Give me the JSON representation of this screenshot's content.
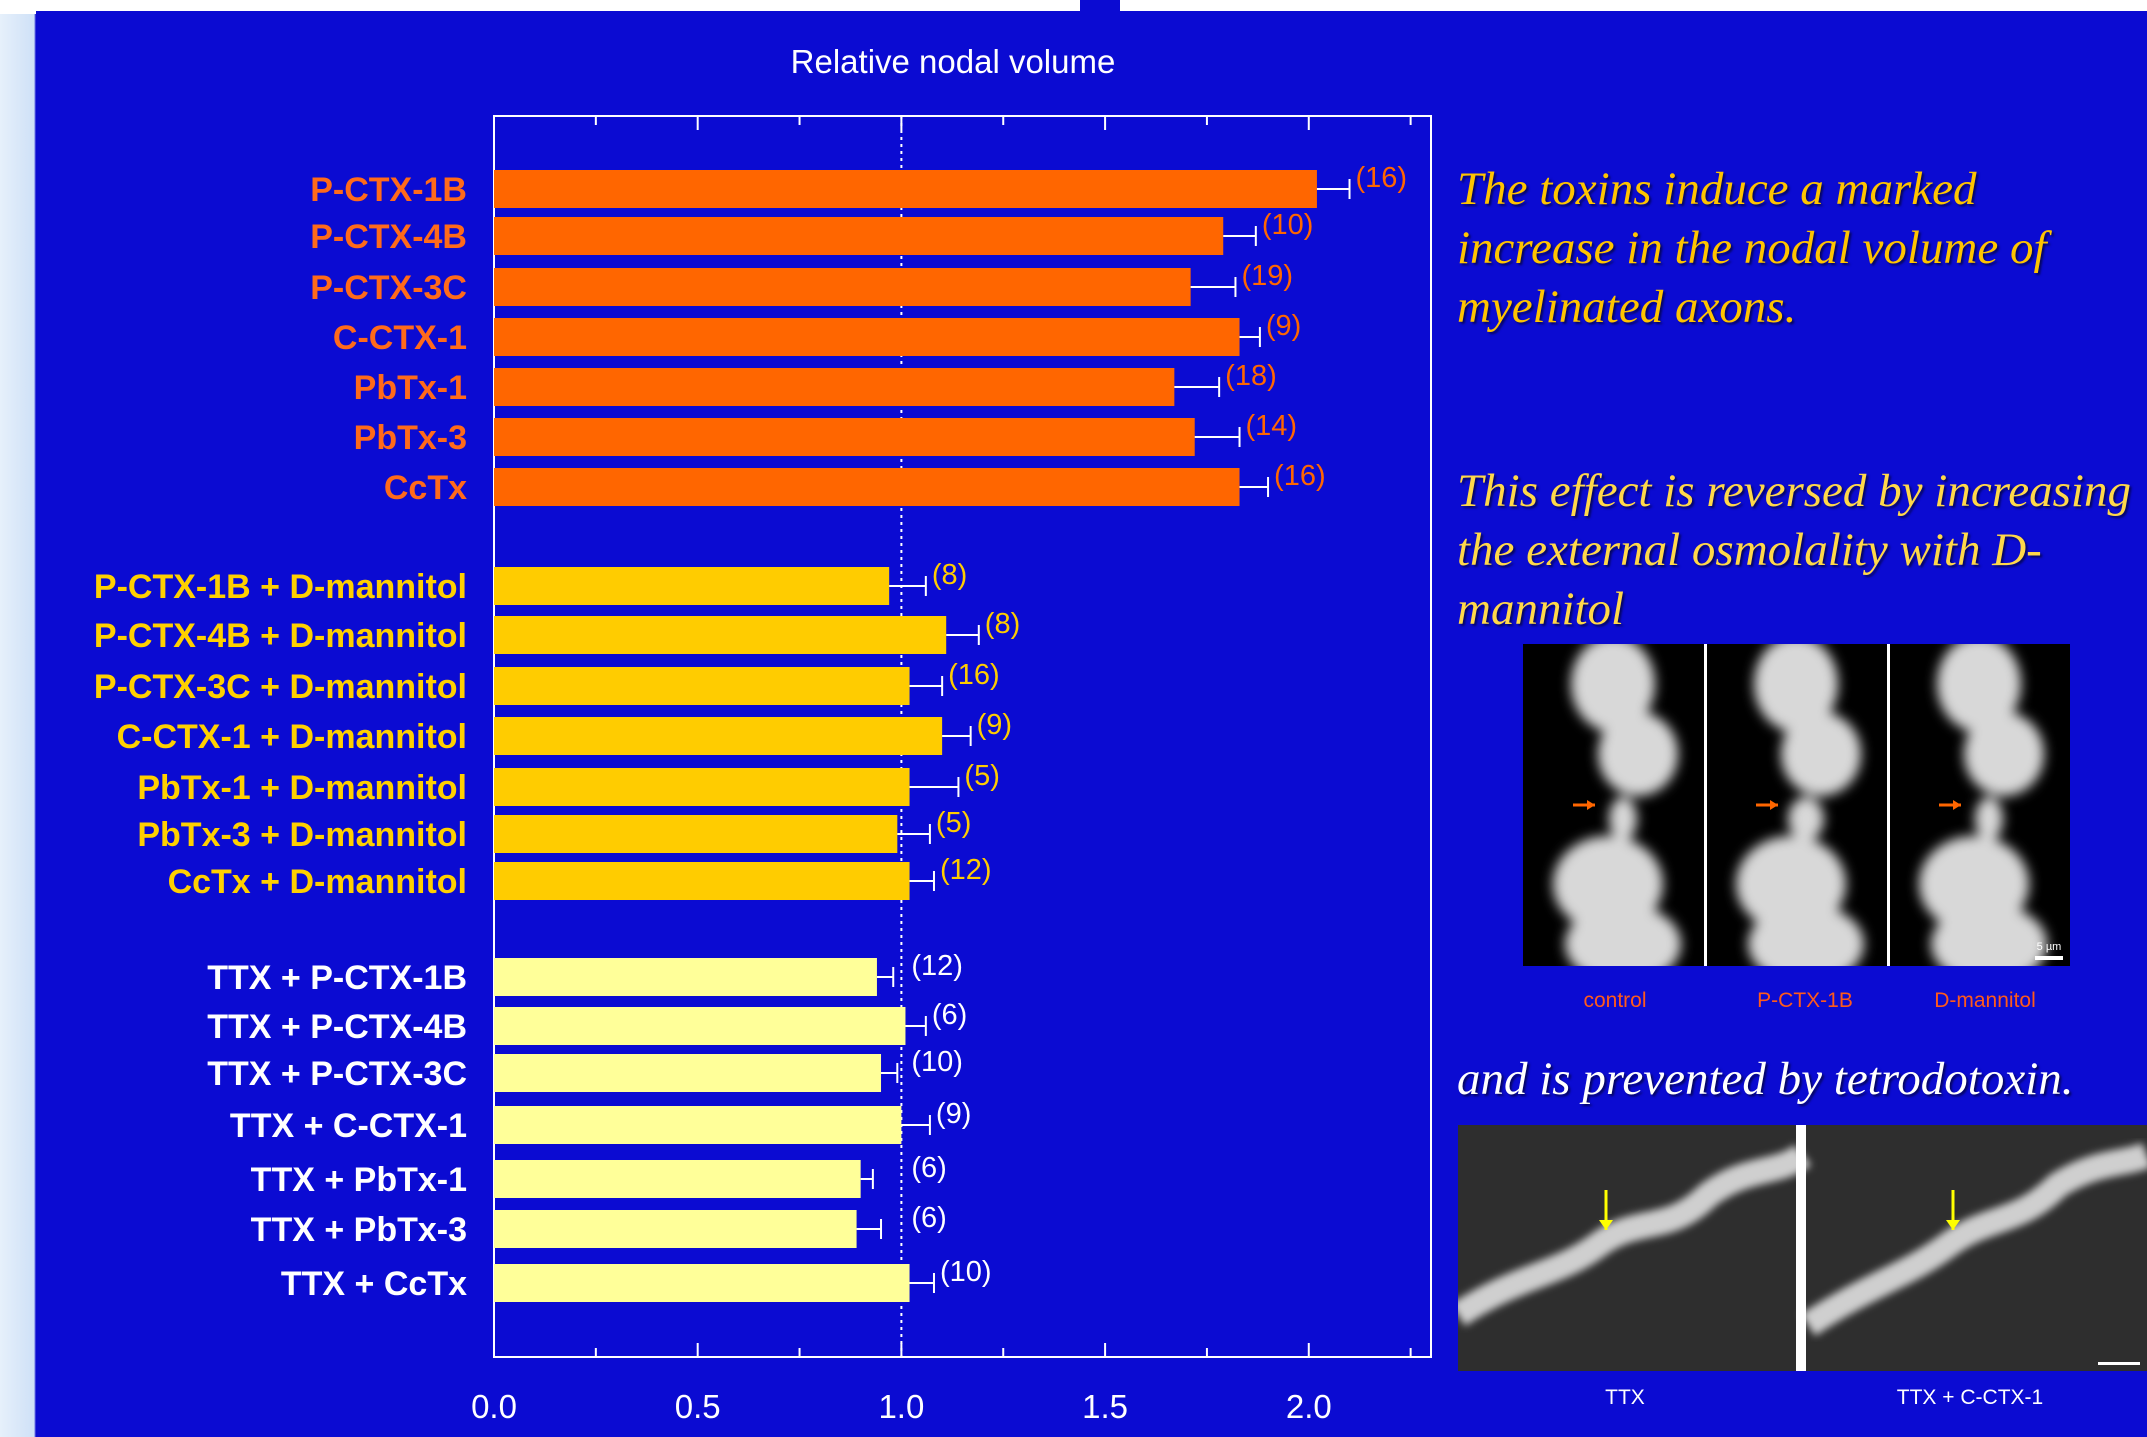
{
  "chart_data": {
    "type": "bar",
    "orientation": "horizontal",
    "title": "Relative nodal volume",
    "xlim": [
      0.0,
      2.3
    ],
    "x_ticks": [
      "0.0",
      "0.5",
      "1.0",
      "1.5",
      "2.0"
    ],
    "reference_line": 1.0,
    "groups": [
      {
        "color": "#ff6600",
        "label_color": "#ff6a1a",
        "bars": [
          {
            "label": "P-CTX-1B",
            "value": 2.02,
            "error": 0.08,
            "n": "(16)"
          },
          {
            "label": "P-CTX-4B",
            "value": 1.79,
            "error": 0.08,
            "n": "(10)"
          },
          {
            "label": "P-CTX-3C",
            "value": 1.71,
            "error": 0.11,
            "n": "(19)"
          },
          {
            "label": "C-CTX-1",
            "value": 1.83,
            "error": 0.05,
            "n": "(9)"
          },
          {
            "label": "PbTx-1",
            "value": 1.67,
            "error": 0.11,
            "n": "(18)"
          },
          {
            "label": "PbTx-3",
            "value": 1.72,
            "error": 0.11,
            "n": "(14)"
          },
          {
            "label": "CcTx",
            "value": 1.83,
            "error": 0.07,
            "n": "(16)"
          }
        ]
      },
      {
        "color": "#ffcc00",
        "label_color": "#ffd000",
        "bars": [
          {
            "label": "P-CTX-1B + D-mannitol",
            "value": 0.97,
            "error": 0.09,
            "n": "(8)"
          },
          {
            "label": "P-CTX-4B + D-mannitol",
            "value": 1.11,
            "error": 0.08,
            "n": "(8)"
          },
          {
            "label": "P-CTX-3C + D-mannitol",
            "value": 1.02,
            "error": 0.08,
            "n": "(16)"
          },
          {
            "label": "C-CTX-1 + D-mannitol",
            "value": 1.1,
            "error": 0.07,
            "n": "(9)"
          },
          {
            "label": "PbTx-1 + D-mannitol",
            "value": 1.02,
            "error": 0.12,
            "n": "(5)"
          },
          {
            "label": "PbTx-3 + D-mannitol",
            "value": 0.99,
            "error": 0.08,
            "n": "(5)"
          },
          {
            "label": "CcTx + D-mannitol",
            "value": 1.02,
            "error": 0.06,
            "n": "(12)"
          }
        ]
      },
      {
        "color": "#ffff99",
        "label_color": "#ffffff",
        "bars": [
          {
            "label": "TTX + P-CTX-1B",
            "value": 0.94,
            "error": 0.04,
            "n": "(12)"
          },
          {
            "label": "TTX + P-CTX-4B",
            "value": 1.01,
            "error": 0.05,
            "n": "(6)"
          },
          {
            "label": "TTX + P-CTX-3C",
            "value": 0.95,
            "error": 0.04,
            "n": "(10)"
          },
          {
            "label": "TTX + C-CTX-1",
            "value": 1.0,
            "error": 0.07,
            "n": "(9)"
          },
          {
            "label": "TTX + PbTx-1",
            "value": 0.9,
            "error": 0.03,
            "n": "(6)"
          },
          {
            "label": "TTX + PbTx-3",
            "value": 0.89,
            "error": 0.06,
            "n": "(6)"
          },
          {
            "label": "TTX + CcTx",
            "value": 1.02,
            "error": 0.06,
            "n": "(10)"
          }
        ]
      }
    ]
  },
  "captions": {
    "caption_1": "The toxins induce a marked increase in the nodal volume of myelinated axons.",
    "caption_2_lines": [
      "This effect is reversed by increasing",
      "the external osmolality with D-",
      "mannitol"
    ],
    "caption_3": "and is prevented by tetrodotoxin."
  },
  "micrographs_top": {
    "labels": [
      "control",
      "P-CTX-1B",
      "D-mannitol"
    ],
    "scale_text": "5 µm",
    "label_color": "#ff5a1a",
    "arrow_color": "#ff6600"
  },
  "micrographs_bottom": {
    "labels": [
      "TTX",
      "TTX + C-CTX-1"
    ],
    "label_color": "#ffffff",
    "arrow_color": "#ffff00"
  }
}
